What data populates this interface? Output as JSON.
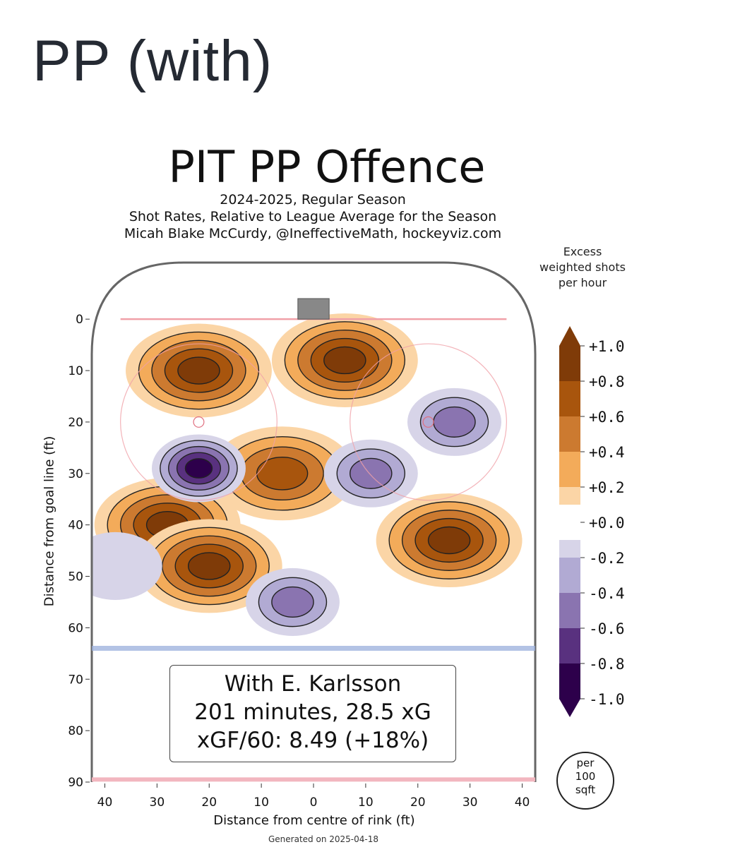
{
  "page": {
    "heading": "PP (with)"
  },
  "chart_data": {
    "type": "heatmap",
    "title": "PIT PP Offence",
    "subtitle_lines": [
      "2024-2025, Regular Season",
      "Shot Rates, Relative to League Average for the Season",
      "Micah Blake McCurdy, @IneffectiveMath, hockeyviz.com"
    ],
    "xlabel": "Distance from centre of rink (ft)",
    "ylabel": "Distance from goal line (ft)",
    "x_ticks": [
      "40",
      "30",
      "20",
      "10",
      "0",
      "10",
      "20",
      "30",
      "40"
    ],
    "x_tick_values": [
      -40,
      -30,
      -20,
      -10,
      0,
      10,
      20,
      30,
      40
    ],
    "y_ticks": [
      0,
      10,
      20,
      30,
      40,
      50,
      60,
      70,
      80,
      90
    ],
    "xlim": [
      -42.5,
      42.5
    ],
    "ylim": [
      90,
      -11
    ],
    "colorbar": {
      "title_lines": [
        "Excess",
        "weighted shots",
        "per hour"
      ],
      "ticks": [
        "+1.0",
        "+0.8",
        "+0.6",
        "+0.4",
        "+0.2",
        "+0.0",
        "-0.2",
        "-0.4",
        "-0.6",
        "-0.8",
        "-1.0"
      ],
      "bands": [
        "#7f3b08",
        "#a8550d",
        "#cc7a30",
        "#f3ab5a",
        "#fbd5a6",
        "#ffffff",
        "#d7d4e8",
        "#b1aad3",
        "#8a74b0",
        "#59317f",
        "#2d004b"
      ]
    },
    "hotspots": [
      {
        "x": -22,
        "y": 10,
        "v": 1.0
      },
      {
        "x": 6,
        "y": 8,
        "v": 0.95
      },
      {
        "x": -6,
        "y": 30,
        "v": 0.85
      },
      {
        "x": -28,
        "y": 40,
        "v": 1.0
      },
      {
        "x": -20,
        "y": 48,
        "v": 0.95
      },
      {
        "x": 26,
        "y": 43,
        "v": 1.0
      },
      {
        "x": -22,
        "y": 29,
        "v": -1.0
      },
      {
        "x": 11,
        "y": 30,
        "v": -0.7
      },
      {
        "x": 27,
        "y": 20,
        "v": -0.6
      },
      {
        "x": -4,
        "y": 55,
        "v": -0.7
      },
      {
        "x": -38,
        "y": 48,
        "v": -0.2
      }
    ],
    "annotation_lines": [
      "With E. Karlsson",
      "201 minutes, 28.5 xG",
      "xGF/60: 8.49 (+18%)"
    ],
    "units_badge_lines": [
      "per",
      "100",
      "sqft"
    ]
  },
  "footer": {
    "generated": "Generated on 2025-04-18"
  }
}
